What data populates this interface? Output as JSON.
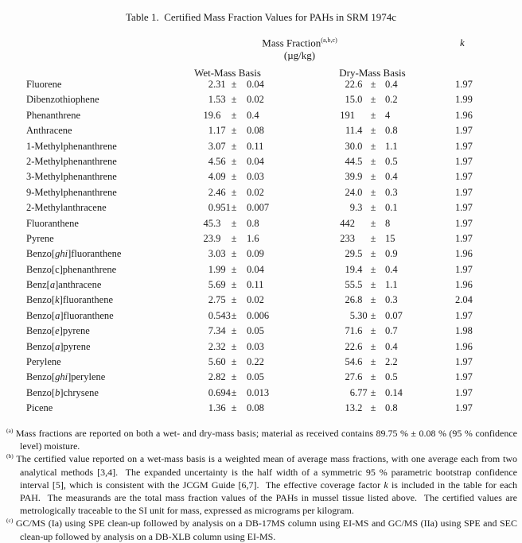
{
  "title": "Table 1.  Certified Mass Fraction Values for PAHs in SRM 1974c",
  "table": {
    "mass_fraction_header": "Mass Fraction",
    "mass_fraction_superscript": "(a,b,c)",
    "unit": "(µg/kg)",
    "k_header": "k",
    "wet_header": "Wet-Mass Basis",
    "dry_header": "Dry-Mass Basis",
    "pm": "±",
    "rows": [
      {
        "name": [
          {
            "text": "Fluorene"
          }
        ],
        "wet": "2.31",
        "wet_unc": "0.04",
        "dry": "22.6",
        "dry_unc": "0.4",
        "k": "1.97"
      },
      {
        "name": [
          {
            "text": "Dibenzothiophene"
          }
        ],
        "wet": "1.53",
        "wet_unc": "0.02",
        "dry": "15.0",
        "dry_unc": "0.2",
        "k": "1.99"
      },
      {
        "name": [
          {
            "text": "Phenanthrene"
          }
        ],
        "wet": "19.6",
        "wet_unc": "0.4",
        "dry": "191",
        "dry_unc": "4",
        "k": "1.96"
      },
      {
        "name": [
          {
            "text": "Anthracene"
          }
        ],
        "wet": "1.17",
        "wet_unc": "0.08",
        "dry": "11.4",
        "dry_unc": "0.8",
        "k": "1.97"
      },
      {
        "name": [
          {
            "text": "1-Methylphenanthrene"
          }
        ],
        "wet": "3.07",
        "wet_unc": "0.11",
        "dry": "30.0",
        "dry_unc": "1.1",
        "k": "1.97"
      },
      {
        "name": [
          {
            "text": "2-Methylphenanthrene"
          }
        ],
        "wet": "4.56",
        "wet_unc": "0.04",
        "dry": "44.5",
        "dry_unc": "0.5",
        "k": "1.97"
      },
      {
        "name": [
          {
            "text": "3-Methylphenanthrene"
          }
        ],
        "wet": "4.09",
        "wet_unc": "0.03",
        "dry": "39.9",
        "dry_unc": "0.4",
        "k": "1.97"
      },
      {
        "name": [
          {
            "text": "9-Methylphenanthrene"
          }
        ],
        "wet": "2.46",
        "wet_unc": "0.02",
        "dry": "24.0",
        "dry_unc": "0.3",
        "k": "1.97"
      },
      {
        "name": [
          {
            "text": "2-Methylanthracene"
          }
        ],
        "wet": "0.951",
        "wet_unc": "0.007",
        "dry": "9.3",
        "dry_unc": "0.1",
        "k": "1.97"
      },
      {
        "name": [
          {
            "text": "Fluoranthene"
          }
        ],
        "wet": "45.3",
        "wet_unc": "0.8",
        "dry": "442",
        "dry_unc": "8",
        "k": "1.97"
      },
      {
        "name": [
          {
            "text": "Pyrene"
          }
        ],
        "wet": "23.9",
        "wet_unc": "1.6",
        "dry": "233",
        "dry_unc": "15",
        "k": "1.97"
      },
      {
        "name": [
          {
            "text": "Benzo["
          },
          {
            "text": "ghi",
            "italic": true
          },
          {
            "text": "]fluoranthene"
          }
        ],
        "wet": "3.03",
        "wet_unc": "0.09",
        "dry": "29.5",
        "dry_unc": "0.9",
        "k": "1.96"
      },
      {
        "name": [
          {
            "text": "Benzo[c]phenanthrene"
          }
        ],
        "wet": "1.99",
        "wet_unc": "0.04",
        "dry": "19.4",
        "dry_unc": "0.4",
        "k": "1.97"
      },
      {
        "name": [
          {
            "text": "Benz["
          },
          {
            "text": "a",
            "italic": true
          },
          {
            "text": "]anthracene"
          }
        ],
        "wet": "5.69",
        "wet_unc": "0.11",
        "dry": "55.5",
        "dry_unc": "1.1",
        "k": "1.96"
      },
      {
        "name": [
          {
            "text": "Benzo["
          },
          {
            "text": "k",
            "italic": true
          },
          {
            "text": "]fluoranthene"
          }
        ],
        "wet": "2.75",
        "wet_unc": "0.02",
        "dry": "26.8",
        "dry_unc": "0.3",
        "k": "2.04"
      },
      {
        "name": [
          {
            "text": "Benzo["
          },
          {
            "text": "a",
            "italic": true
          },
          {
            "text": "]fluoranthene"
          }
        ],
        "wet": "0.543",
        "wet_unc": "0.006",
        "dry": "5.30",
        "dry_unc": "0.07",
        "k": "1.97"
      },
      {
        "name": [
          {
            "text": "Benzo["
          },
          {
            "text": "e",
            "italic": true
          },
          {
            "text": "]pyrene"
          }
        ],
        "wet": "7.34",
        "wet_unc": "0.05",
        "dry": "71.6",
        "dry_unc": "0.7",
        "k": "1.98"
      },
      {
        "name": [
          {
            "text": "Benzo["
          },
          {
            "text": "a",
            "italic": true
          },
          {
            "text": "]pyrene"
          }
        ],
        "wet": "2.32",
        "wet_unc": "0.03",
        "dry": "22.6",
        "dry_unc": "0.4",
        "k": "1.96"
      },
      {
        "name": [
          {
            "text": "Perylene"
          }
        ],
        "wet": "5.60",
        "wet_unc": "0.22",
        "dry": "54.6",
        "dry_unc": "2.2",
        "k": "1.97"
      },
      {
        "name": [
          {
            "text": "Benzo["
          },
          {
            "text": "ghi",
            "italic": true
          },
          {
            "text": "]perylene"
          }
        ],
        "wet": "2.82",
        "wet_unc": "0.05",
        "dry": "27.6",
        "dry_unc": "0.5",
        "k": "1.97"
      },
      {
        "name": [
          {
            "text": "Benzo["
          },
          {
            "text": "b",
            "italic": true
          },
          {
            "text": "]chrysene"
          }
        ],
        "wet": "0.694",
        "wet_unc": "0.013",
        "dry": "6.77",
        "dry_unc": "0.14",
        "k": "1.97"
      },
      {
        "name": [
          {
            "text": "Picene"
          }
        ],
        "wet": "1.36",
        "wet_unc": "0.08",
        "dry": "13.2",
        "dry_unc": "0.8",
        "k": "1.97"
      }
    ]
  },
  "footnotes": [
    {
      "marker": "(a)",
      "segments": [
        {
          "text": "Mass fractions are reported on both a wet- and dry-mass basis; material as received contains 89.75 % ± 0.08 % (95 % confidence level) moisture."
        }
      ]
    },
    {
      "marker": "(b)",
      "segments": [
        {
          "text": "The certified value reported on a wet-mass basis is a weighted mean of average mass fractions, with one average each from two analytical methods [3,4].  The expanded uncertainty is the half width of a symmetric 95 % parametric bootstrap confidence interval [5], which is consistent with the JCGM Guide [6,7].  The effective coverage factor "
        },
        {
          "text": "k",
          "italic": true
        },
        {
          "text": " is included in the table for each PAH.  The measurands are the total mass fraction values of the PAHs in mussel tissue listed above.  The certified values are metrologically traceable to the SI unit for mass, expressed as micrograms per kilogram."
        }
      ]
    },
    {
      "marker": "(c)",
      "segments": [
        {
          "text": "GC/MS (Ia) using SPE clean-up followed by analysis on a DB-17MS column using EI-MS and GC/MS (IIa) using SPE and SEC clean-up followed by analysis on a DB-XLB column using EI-MS."
        }
      ]
    }
  ]
}
